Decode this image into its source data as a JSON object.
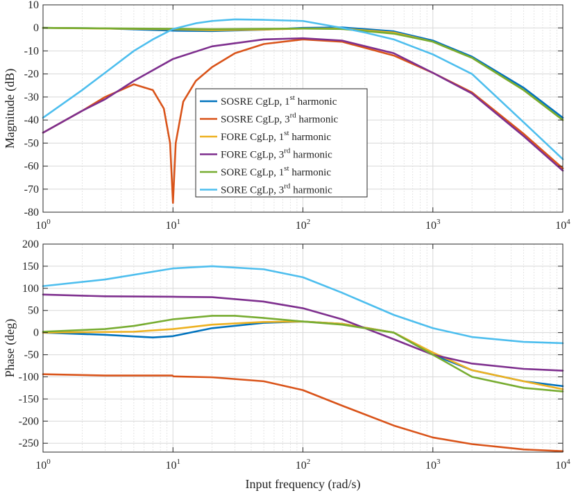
{
  "figure": {
    "background": "#ffffff",
    "grid_color": "#d8d8d8",
    "axis_color": "#262626"
  },
  "chart_data": [
    {
      "type": "line",
      "name": "magnitude",
      "xscale": "log",
      "xlim": [
        1,
        10000
      ],
      "ylim": [
        -80,
        10
      ],
      "yticks": [
        10,
        0,
        -10,
        -20,
        -30,
        -40,
        -50,
        -60,
        -70,
        -80
      ],
      "ytick_labels": [
        "10",
        "0",
        "-10",
        "-20",
        "-30",
        "-40",
        "-50",
        "-60",
        "-70",
        "-80"
      ],
      "xtick_labels": [
        {
          "base": "10",
          "exp": "0"
        },
        {
          "base": "10",
          "exp": "1"
        },
        {
          "base": "10",
          "exp": "2"
        },
        {
          "base": "10",
          "exp": "3"
        },
        {
          "base": "10",
          "exp": "4"
        }
      ],
      "ylabel": "Magnitude (dB)",
      "xlabel": "",
      "grid": true,
      "legend_position": "center-left",
      "series": [
        {
          "name": "SOSRE CgLp, 1st harmonic",
          "legend": {
            "pre": "SOSRE CgLp, 1",
            "sup": "st",
            "post": " harmonic"
          },
          "color": "#0072BD",
          "x": [
            1,
            3,
            10,
            20,
            50,
            100,
            200,
            500,
            1000,
            2000,
            5000,
            10000
          ],
          "y": [
            0,
            -0.2,
            -1.2,
            -1.4,
            -0.8,
            0,
            0.2,
            -1.5,
            -5.5,
            -12.5,
            -26,
            -39
          ]
        },
        {
          "name": "SOSRE CgLp, 3rd harmonic",
          "legend": {
            "pre": "SOSRE CgLp, 3",
            "sup": "rd",
            "post": " harmonic"
          },
          "color": "#D95319",
          "x": [
            1,
            2,
            3,
            5,
            7,
            8.5,
            9.5,
            10,
            10.5,
            12,
            15,
            20,
            30,
            50,
            100,
            200,
            500,
            1000,
            2000,
            5000,
            10000
          ],
          "y": [
            -45.5,
            -36,
            -30,
            -24.5,
            -27,
            -35,
            -50,
            -76,
            -50,
            -32,
            -23,
            -17,
            -11,
            -7,
            -5,
            -6,
            -12,
            -19.5,
            -28,
            -46,
            -61
          ]
        },
        {
          "name": "FORE CgLp, 1st harmonic",
          "legend": {
            "pre": "FORE CgLp, 1",
            "sup": "st",
            "post": " harmonic"
          },
          "color": "#EDB120",
          "x": [
            1,
            10,
            20,
            50,
            100,
            200,
            500,
            1000,
            2000,
            5000,
            10000
          ],
          "y": [
            0,
            -0.6,
            -1.0,
            -0.7,
            -0.3,
            -0.3,
            -2,
            -6,
            -13,
            -27,
            -40
          ]
        },
        {
          "name": "FORE CgLp, 3rd harmonic",
          "legend": {
            "pre": "FORE CgLp, 3",
            "sup": "rd",
            "post": " harmonic"
          },
          "color": "#7E2F8E",
          "x": [
            1,
            2,
            3,
            5,
            10,
            20,
            50,
            100,
            200,
            500,
            1000,
            2000,
            5000,
            10000
          ],
          "y": [
            -45.5,
            -36,
            -31,
            -23,
            -13.5,
            -8,
            -5,
            -4.5,
            -5.5,
            -11,
            -19.5,
            -28.5,
            -47,
            -62
          ]
        },
        {
          "name": "SORE CgLp, 1st harmonic",
          "legend": {
            "pre": "SORE CgLp, 1",
            "sup": "st",
            "post": " harmonic"
          },
          "color": "#77AC30",
          "x": [
            1,
            10,
            20,
            50,
            100,
            200,
            500,
            1000,
            2000,
            5000,
            10000
          ],
          "y": [
            0,
            -0.4,
            -0.6,
            -0.4,
            -0.3,
            -0.5,
            -2.5,
            -6,
            -13,
            -27,
            -40
          ]
        },
        {
          "name": "SORE CgLp, 3rd harmonic",
          "legend": {
            "pre": "SORE CgLp, 3",
            "sup": "rd",
            "post": " harmonic"
          },
          "color": "#4DBEEE",
          "x": [
            1,
            2,
            3,
            5,
            7,
            10,
            15,
            20,
            30,
            50,
            100,
            200,
            300,
            500,
            1000,
            2000,
            5000,
            10000
          ],
          "y": [
            -39,
            -27,
            -19.5,
            -10,
            -5,
            -0.5,
            2,
            3,
            3.7,
            3.5,
            3,
            0,
            -2,
            -5,
            -11.5,
            -20,
            -41,
            -57
          ]
        }
      ]
    },
    {
      "type": "line",
      "name": "phase",
      "xscale": "log",
      "xlim": [
        1,
        10000
      ],
      "ylim": [
        -270,
        200
      ],
      "yticks": [
        200,
        150,
        100,
        50,
        0,
        -50,
        -100,
        -150,
        -200,
        -250
      ],
      "ytick_labels": [
        "200",
        "150",
        "100",
        "50",
        "0",
        "-50",
        "-100",
        "-150",
        "-200",
        "-250"
      ],
      "xtick_labels": [
        {
          "base": "10",
          "exp": "0"
        },
        {
          "base": "10",
          "exp": "1"
        },
        {
          "base": "10",
          "exp": "2"
        },
        {
          "base": "10",
          "exp": "3"
        },
        {
          "base": "10",
          "exp": "4"
        }
      ],
      "ylabel": "Phase (deg)",
      "xlabel": "Input frequency (rad/s)",
      "grid": true,
      "series": [
        {
          "name": "SOSRE CgLp, 1st harmonic",
          "color": "#0072BD",
          "x": [
            1,
            3,
            7,
            10,
            20,
            50,
            100,
            200,
            500,
            1000,
            2000,
            5000,
            10000
          ],
          "y": [
            0,
            -5,
            -11,
            -8,
            10,
            22,
            25,
            20,
            0,
            -50,
            -85,
            -110,
            -121
          ]
        },
        {
          "name": "SOSRE CgLp, 3rd harmonic",
          "color": "#D95319",
          "x": [
            1,
            3,
            9.9,
            10.1,
            20,
            50,
            100,
            200,
            500,
            1000,
            2000,
            5000,
            10000
          ],
          "y": [
            -94,
            -97,
            -97,
            -99,
            -101,
            -110,
            -130,
            -165,
            -210,
            -237,
            -252,
            -264,
            -268
          ]
        },
        {
          "name": "FORE CgLp, 1st harmonic",
          "color": "#EDB120",
          "x": [
            1,
            5,
            10,
            20,
            50,
            100,
            200,
            500,
            1000,
            2000,
            5000,
            10000
          ],
          "y": [
            0,
            2,
            8,
            18,
            24,
            25,
            20,
            0,
            -45,
            -85,
            -110,
            -128
          ]
        },
        {
          "name": "FORE CgLp, 3rd harmonic",
          "color": "#7E2F8E",
          "x": [
            1,
            3,
            10,
            20,
            50,
            100,
            200,
            500,
            1000,
            2000,
            5000,
            10000
          ],
          "y": [
            86,
            82,
            81,
            80,
            70,
            55,
            30,
            -15,
            -50,
            -70,
            -82,
            -86
          ]
        },
        {
          "name": "SORE CgLp, 1st harmonic",
          "color": "#77AC30",
          "x": [
            1,
            3,
            5,
            10,
            20,
            30,
            50,
            100,
            200,
            500,
            1000,
            2000,
            5000,
            10000
          ],
          "y": [
            2,
            8,
            15,
            30,
            38,
            38,
            33,
            25,
            18,
            0,
            -50,
            -100,
            -125,
            -133
          ]
        },
        {
          "name": "SORE CgLp, 3rd harmonic",
          "color": "#4DBEEE",
          "x": [
            1,
            3,
            10,
            20,
            50,
            100,
            200,
            500,
            1000,
            2000,
            5000,
            10000
          ],
          "y": [
            105,
            120,
            145,
            150,
            143,
            125,
            90,
            40,
            10,
            -10,
            -21,
            -24
          ]
        }
      ]
    }
  ]
}
